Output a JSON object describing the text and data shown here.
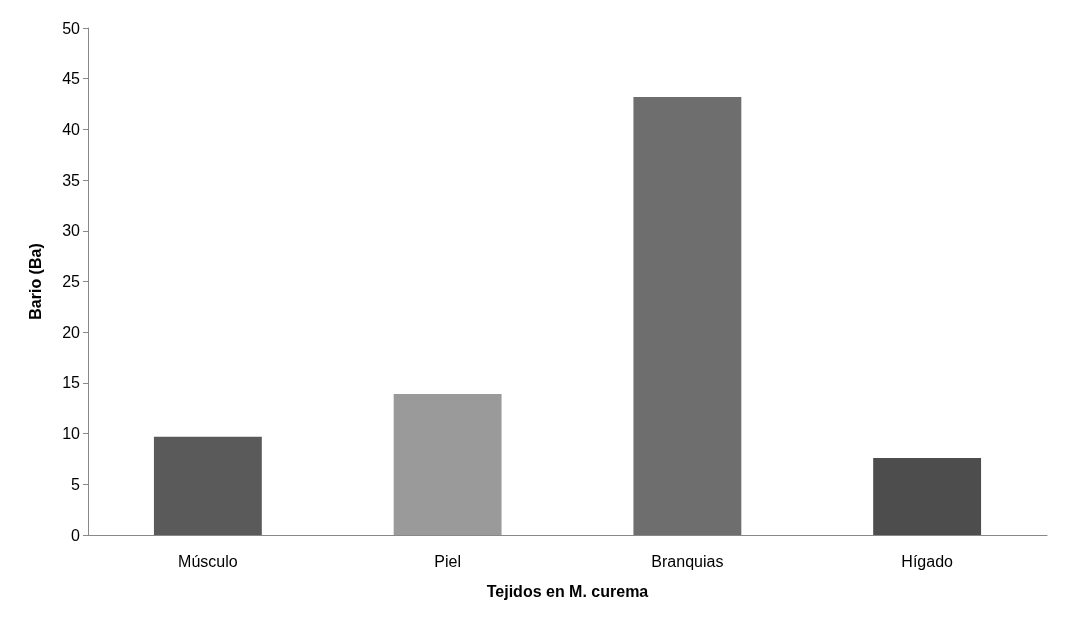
{
  "chart_data": {
    "type": "bar",
    "xlabel": "Tejidos en M. curema",
    "ylabel": "Bario (Ba)",
    "categories": [
      "Músculo",
      "Piel",
      "Branquias",
      "Hígado"
    ],
    "values": [
      9.7,
      13.9,
      43.2,
      7.6
    ],
    "colors": [
      "#5a5a5a",
      "#9a9a9a",
      "#6e6e6e",
      "#4d4d4d"
    ],
    "ylim": [
      0,
      50
    ],
    "yticks": [
      0,
      5,
      10,
      15,
      20,
      25,
      30,
      35,
      40,
      45,
      50
    ],
    "grid": false
  }
}
